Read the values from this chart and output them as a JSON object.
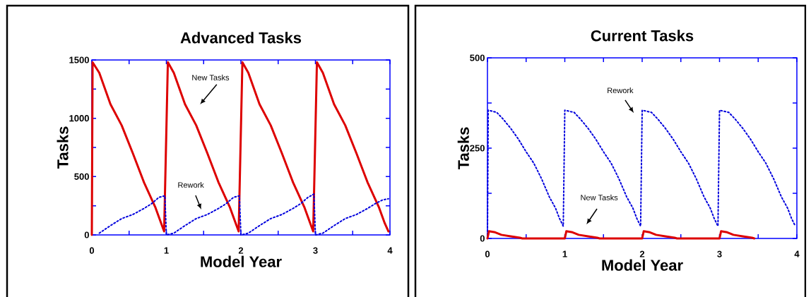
{
  "chart_data": [
    {
      "type": "line",
      "title": "Advanced Tasks",
      "xlabel": "Model Year",
      "ylabel": "Tasks",
      "xlim": [
        0,
        4
      ],
      "ylim": [
        0,
        1500
      ],
      "xticks": [
        0,
        {
          "value": 0.5,
          "label": null
        },
        1,
        {
          "value": 1.5,
          "label": null
        },
        2,
        {
          "value": 2.5,
          "label": null
        },
        3,
        {
          "value": 3.5,
          "label": null
        },
        4
      ],
      "yticks": [
        0,
        {
          "value": 250,
          "label": null
        },
        500,
        {
          "value": 750,
          "label": null
        },
        1000,
        {
          "value": 1250,
          "label": null
        },
        1500
      ],
      "grid": false,
      "series": [
        {
          "color": "#dd0000",
          "line_style": "solid",
          "x": [
            0,
            0.01,
            0.1,
            0.25,
            0.4,
            0.55,
            0.7,
            0.85,
            0.93,
            0.97,
            1.02,
            1.1,
            1.25,
            1.4,
            1.55,
            1.7,
            1.85,
            1.93,
            1.97,
            2.02,
            2.1,
            2.25,
            2.4,
            2.55,
            2.7,
            2.85,
            2.93,
            2.97,
            3.02,
            3.1,
            3.25,
            3.4,
            3.55,
            3.7,
            3.85,
            3.93,
            3.98
          ],
          "values": [
            0,
            1480,
            1390,
            1120,
            940,
            700,
            450,
            240,
            100,
            30,
            1480,
            1390,
            1120,
            940,
            700,
            450,
            240,
            100,
            30,
            1480,
            1390,
            1120,
            940,
            700,
            450,
            240,
            100,
            30,
            1480,
            1390,
            1120,
            940,
            700,
            450,
            240,
            100,
            30
          ]
        },
        {
          "color": "#0000dd",
          "line_style": "dotted",
          "x": [
            0.1,
            0.25,
            0.4,
            0.55,
            0.7,
            0.8,
            0.9,
            0.98,
            1.0,
            1.1,
            1.25,
            1.4,
            1.55,
            1.7,
            1.8,
            1.9,
            1.98,
            2.0,
            2.1,
            2.25,
            2.4,
            2.55,
            2.7,
            2.8,
            2.9,
            2.98,
            3.0,
            3.1,
            3.25,
            3.4,
            3.55,
            3.7,
            3.8,
            3.9,
            3.98
          ],
          "values": [
            15,
            80,
            140,
            175,
            227,
            267,
            322,
            335,
            0,
            15,
            80,
            140,
            175,
            227,
            267,
            322,
            335,
            0,
            15,
            80,
            140,
            175,
            227,
            267,
            322,
            350,
            0,
            15,
            80,
            140,
            175,
            227,
            267,
            300,
            310
          ]
        }
      ],
      "annotations": [
        "New Tasks",
        "Rework"
      ]
    },
    {
      "type": "line",
      "title": "Current Tasks",
      "xlabel": "Model Year",
      "ylabel": "Tasks",
      "xlim": [
        0,
        4
      ],
      "ylim": [
        0,
        500
      ],
      "xticks": [
        0,
        {
          "value": 0.5,
          "label": null
        },
        1,
        {
          "value": 1.5,
          "label": null
        },
        2,
        {
          "value": 2.5,
          "label": null
        },
        3,
        {
          "value": 3.5,
          "label": null
        },
        4
      ],
      "yticks": [
        0,
        {
          "value": 125,
          "label": null
        },
        250,
        {
          "value": 375,
          "label": null
        },
        500
      ],
      "grid": false,
      "series": [
        {
          "color": "#0000dd",
          "line_style": "dotted",
          "x": [
            0,
            0.01,
            0.12,
            0.2,
            0.3,
            0.4,
            0.5,
            0.6,
            0.7,
            0.8,
            0.88,
            0.93,
            0.98,
            1.0,
            1.12,
            1.2,
            1.3,
            1.4,
            1.5,
            1.6,
            1.7,
            1.8,
            1.88,
            1.93,
            1.98,
            2.0,
            2.12,
            2.2,
            2.3,
            2.4,
            2.5,
            2.6,
            2.7,
            2.8,
            2.88,
            2.93,
            2.98,
            3.0,
            3.12,
            3.2,
            3.3,
            3.4,
            3.5,
            3.6,
            3.7,
            3.8,
            3.88,
            3.93,
            3.98
          ],
          "values": [
            0,
            355,
            349,
            331,
            305,
            275,
            240,
            208,
            165,
            115,
            84,
            56,
            34,
            355,
            349,
            331,
            305,
            275,
            240,
            208,
            165,
            115,
            84,
            56,
            34,
            355,
            349,
            331,
            305,
            275,
            240,
            208,
            165,
            115,
            84,
            56,
            34,
            355,
            349,
            331,
            305,
            275,
            240,
            208,
            165,
            115,
            84,
            56,
            34
          ]
        },
        {
          "color": "#dd0000",
          "line_style": "solid",
          "x": [
            0,
            0.02,
            0.1,
            0.18,
            0.3,
            0.42,
            0.45,
            1.0,
            1.02,
            1.1,
            1.18,
            1.3,
            1.42,
            1.45,
            2.0,
            2.02,
            2.1,
            2.18,
            2.3,
            2.42,
            2.45,
            3.0,
            3.02,
            3.1,
            3.18,
            3.3,
            3.42,
            3.45
          ],
          "values": [
            0,
            20,
            17,
            10,
            6,
            2,
            0,
            0,
            20,
            17,
            10,
            6,
            2,
            0,
            0,
            20,
            17,
            10,
            6,
            2,
            0,
            0,
            20,
            17,
            10,
            6,
            2,
            0
          ]
        }
      ],
      "annotations": [
        "Rework",
        "New Tasks"
      ]
    }
  ]
}
